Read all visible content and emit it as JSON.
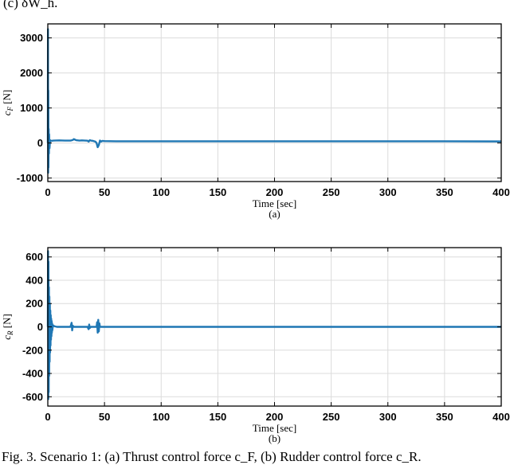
{
  "top_caption": "(c) δW_h.",
  "bottom_caption": "Fig. 3.  Scenario 1: (a) Thrust control force c_F, (b) Rudder control force c_R.",
  "chart_data": [
    {
      "type": "line",
      "panel": "(a)",
      "xlabel": "Time [sec]",
      "ylabel": "c_F [N]",
      "xlim": [
        0,
        400
      ],
      "ylim": [
        -1100,
        3400
      ],
      "xticks": [
        0,
        50,
        100,
        150,
        200,
        250,
        300,
        350,
        400
      ],
      "yticks": [
        -1000,
        0,
        1000,
        2000,
        3000
      ],
      "grid": true,
      "color": "#1f77b4",
      "series": [
        {
          "x": [
            0,
            0.15,
            0.3,
            0.45,
            0.6,
            0.8,
            1.0,
            1.2,
            1.5,
            2,
            3,
            5,
            10,
            15,
            20,
            22,
            23,
            25,
            28,
            30,
            33,
            35,
            36,
            37,
            38,
            40,
            42,
            43,
            44,
            45,
            46,
            47,
            48,
            50,
            60,
            100,
            150,
            200,
            250,
            300,
            350,
            400
          ],
          "y": [
            0,
            3250,
            -850,
            1500,
            -700,
            400,
            -300,
            250,
            -150,
            80,
            60,
            70,
            75,
            70,
            70,
            85,
            110,
            80,
            70,
            75,
            70,
            65,
            40,
            80,
            70,
            60,
            40,
            0,
            -120,
            -60,
            70,
            40,
            60,
            55,
            50,
            50,
            50,
            50,
            50,
            50,
            50,
            45
          ]
        }
      ]
    },
    {
      "type": "line",
      "panel": "(b)",
      "xlabel": "Time [sec]",
      "ylabel": "c_R [N]",
      "xlim": [
        0,
        400
      ],
      "ylim": [
        -680,
        680
      ],
      "xticks": [
        0,
        50,
        100,
        150,
        200,
        250,
        300,
        350,
        400
      ],
      "yticks": [
        -600,
        -400,
        -200,
        0,
        200,
        400,
        600
      ],
      "grid": true,
      "color": "#1f77b4",
      "series": [
        {
          "x": [
            0,
            0.2,
            0.4,
            0.6,
            0.8,
            1.0,
            1.2,
            1.4,
            1.6,
            1.8,
            2.0,
            2.2,
            2.4,
            2.6,
            2.8,
            3.0,
            3.2,
            3.4,
            3.6,
            3.8,
            4.0,
            4.5,
            5,
            6,
            8,
            10,
            20,
            21,
            21.5,
            22,
            23,
            35,
            36,
            36.5,
            37,
            38,
            43,
            43.5,
            44,
            44.5,
            45,
            45.5,
            46,
            47,
            50,
            100,
            150,
            200,
            250,
            300,
            350,
            400
          ],
          "y": [
            0,
            650,
            -620,
            560,
            -560,
            340,
            -420,
            260,
            -300,
            200,
            -220,
            140,
            -160,
            100,
            -110,
            70,
            -80,
            50,
            -50,
            30,
            -30,
            15,
            10,
            5,
            0,
            0,
            0,
            35,
            -30,
            10,
            0,
            0,
            -20,
            20,
            -10,
            0,
            0,
            40,
            -50,
            60,
            -40,
            30,
            0,
            0,
            0,
            0,
            0,
            0,
            0,
            0,
            0,
            0
          ]
        }
      ]
    }
  ]
}
